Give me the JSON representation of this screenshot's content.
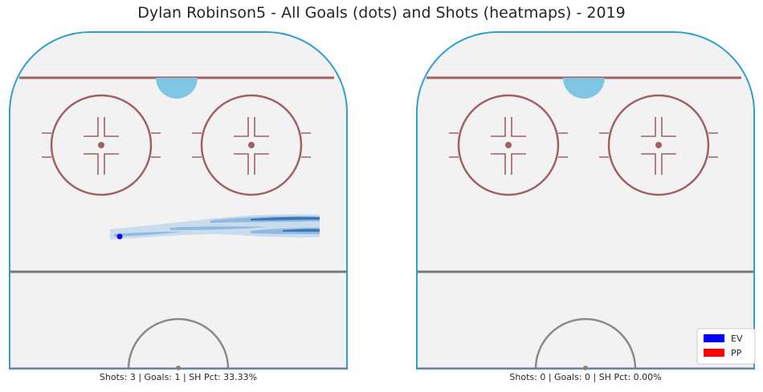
{
  "chart_data": {
    "type": "heatmap",
    "title": "Dylan Robinson5 - All Goals (dots) and Shots (heatmaps) - 2019",
    "panels": [
      {
        "caption": "Shots: 3 | Goals: 1 | SH Pct: 33.33%",
        "shots": 3,
        "goals": 1,
        "sh_pct": "33.33%",
        "goal_dots": [
          {
            "x": -28,
            "y": 64,
            "strength": "EV"
          }
        ]
      },
      {
        "caption": "Shots: 0 | Goals: 0 | SH Pct: 0.00%",
        "shots": 0,
        "goals": 0,
        "sh_pct": "0.00%",
        "goal_dots": []
      }
    ],
    "legend": {
      "position": "bottom-right",
      "entries": [
        {
          "label": "EV",
          "color": "#0000ff"
        },
        {
          "label": "PP",
          "color": "#ff0000"
        }
      ]
    },
    "colors": {
      "rink_fill": "#f2f2f2",
      "boards": "#2e9fd0",
      "red_line": "#a06064",
      "blue_line": "#7a7a7a",
      "crease": "#7ec6e3",
      "heat_light": "#c8dcee",
      "heat_mid": "#8fb9de",
      "heat_dark": "#3d75b5"
    }
  }
}
